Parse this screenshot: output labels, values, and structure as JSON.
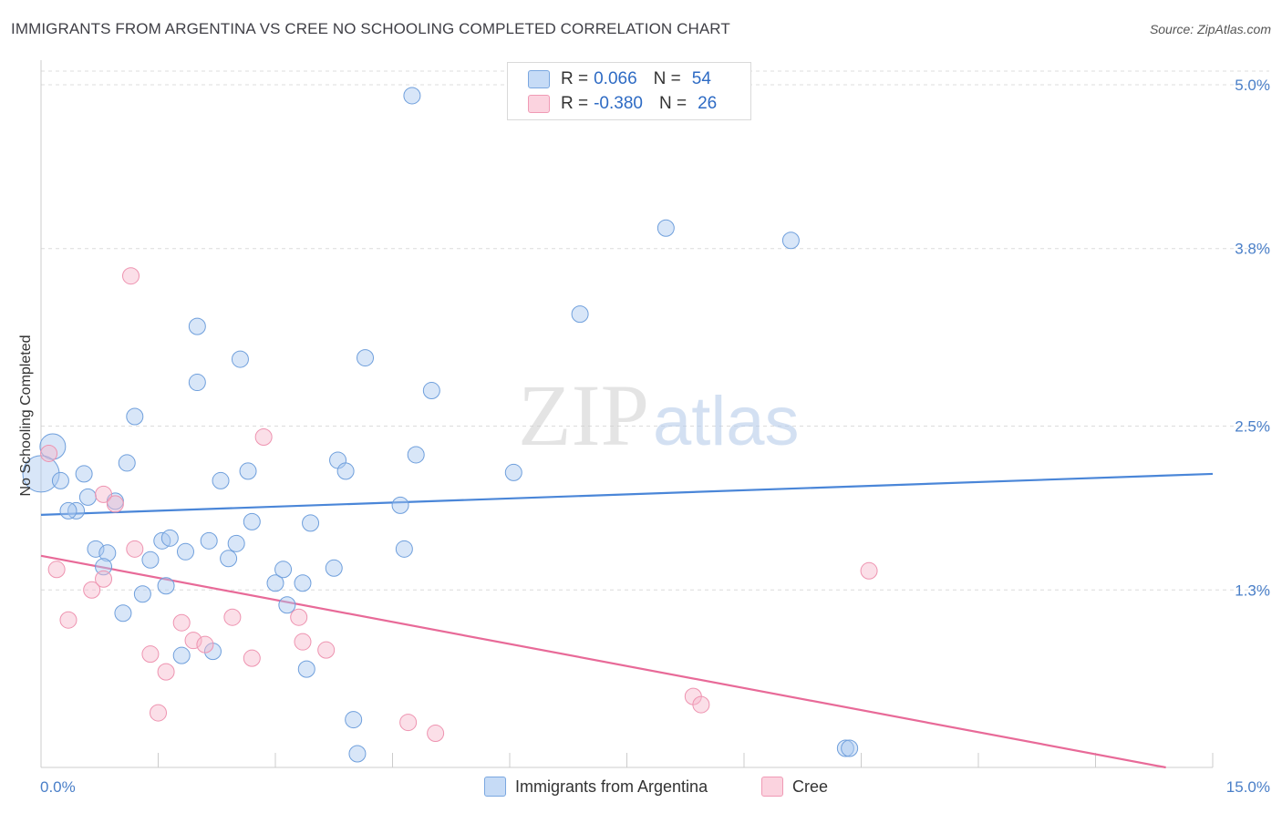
{
  "header": {
    "title": "IMMIGRANTS FROM ARGENTINA VS CREE NO SCHOOLING COMPLETED CORRELATION CHART",
    "source": "Source: ZipAtlas.com"
  },
  "watermark": {
    "zip": "ZIP",
    "atlas": "atlas"
  },
  "legend": {
    "rows": [
      {
        "r_label": "R =",
        "r_value": "0.066",
        "n_label": "N =",
        "n_value": "54",
        "color": "#a9c8f0"
      },
      {
        "r_label": "R =",
        "r_value": "-0.380",
        "n_label": "N =",
        "n_value": "26",
        "color": "#f6b9cb"
      }
    ]
  },
  "bottom_legend": {
    "items": [
      {
        "label": "Immigrants from Argentina",
        "color": "#a9c8f0"
      },
      {
        "label": "Cree",
        "color": "#f6b9cb"
      }
    ]
  },
  "chart_data": {
    "type": "scatter",
    "title": "IMMIGRANTS FROM ARGENTINA VS CREE NO SCHOOLING COMPLETED CORRELATION CHART",
    "xlabel": "",
    "ylabel": "No Schooling Completed",
    "xlim": [
      0,
      15
    ],
    "ylim": [
      0,
      5.1
    ],
    "x_ticks": [
      "0.0%",
      "15.0%"
    ],
    "y_ticks": [
      {
        "value": 5.0,
        "label": "5.0%"
      },
      {
        "value": 3.8,
        "label": "3.8%"
      },
      {
        "value": 2.5,
        "label": "2.5%"
      },
      {
        "value": 1.3,
        "label": "1.3%"
      }
    ],
    "grid": true,
    "colors": {
      "argentina": "#4a86d8",
      "cree": "#e86a98"
    },
    "series": [
      {
        "name": "Immigrants from Argentina",
        "trend": [
          [
            0,
            1.85
          ],
          [
            15,
            2.15
          ]
        ],
        "points": [
          [
            0.15,
            2.35,
            14
          ],
          [
            0.0,
            2.15,
            20
          ],
          [
            0.25,
            2.1,
            9
          ],
          [
            0.55,
            2.15,
            9
          ],
          [
            0.6,
            1.98,
            9
          ],
          [
            0.45,
            1.88,
            9
          ],
          [
            0.35,
            1.88,
            9
          ],
          [
            0.95,
            1.95,
            9
          ],
          [
            1.1,
            2.23,
            9
          ],
          [
            1.2,
            2.57,
            9
          ],
          [
            0.7,
            1.6,
            9
          ],
          [
            0.85,
            1.57,
            9
          ],
          [
            0.8,
            1.47,
            9
          ],
          [
            1.4,
            1.52,
            9
          ],
          [
            1.55,
            1.66,
            9
          ],
          [
            1.65,
            1.68,
            9
          ],
          [
            1.85,
            1.58,
            9
          ],
          [
            2.15,
            1.66,
            9
          ],
          [
            2.4,
            1.53,
            9
          ],
          [
            2.5,
            1.64,
            9
          ],
          [
            2.7,
            1.8,
            9
          ],
          [
            2.65,
            2.17,
            9
          ],
          [
            2.0,
            2.82,
            9
          ],
          [
            2.0,
            3.23,
            9
          ],
          [
            2.55,
            2.99,
            9
          ],
          [
            2.3,
            2.1,
            9
          ],
          [
            1.05,
            1.13,
            9
          ],
          [
            1.3,
            1.27,
            9
          ],
          [
            1.6,
            1.33,
            9
          ],
          [
            1.8,
            0.82,
            9
          ],
          [
            2.2,
            0.85,
            9
          ],
          [
            3.0,
            1.35,
            9
          ],
          [
            3.1,
            1.45,
            9
          ],
          [
            3.15,
            1.19,
            9
          ],
          [
            3.35,
            1.35,
            9
          ],
          [
            3.4,
            0.72,
            9
          ],
          [
            3.45,
            1.79,
            9
          ],
          [
            3.8,
            2.25,
            9
          ],
          [
            3.9,
            2.17,
            9
          ],
          [
            3.75,
            1.46,
            9
          ],
          [
            4.0,
            0.35,
            9
          ],
          [
            4.05,
            0.1,
            9
          ],
          [
            4.15,
            3.0,
            9
          ],
          [
            4.6,
            1.92,
            9
          ],
          [
            4.65,
            1.6,
            9
          ],
          [
            4.8,
            2.29,
            9
          ],
          [
            5.0,
            2.76,
            9
          ],
          [
            4.75,
            4.92,
            9
          ],
          [
            6.05,
            2.16,
            9
          ],
          [
            6.9,
            3.32,
            9
          ],
          [
            8.0,
            3.95,
            9
          ],
          [
            9.6,
            3.86,
            9
          ],
          [
            10.3,
            0.14,
            9
          ],
          [
            10.35,
            0.14,
            9
          ]
        ]
      },
      {
        "name": "Cree",
        "trend": [
          [
            0,
            1.55
          ],
          [
            14.4,
            0.0
          ]
        ],
        "points": [
          [
            0.1,
            2.3,
            9
          ],
          [
            0.2,
            1.45,
            9
          ],
          [
            0.35,
            1.08,
            9
          ],
          [
            0.65,
            1.3,
            9
          ],
          [
            0.8,
            2.0,
            9
          ],
          [
            0.8,
            1.38,
            9
          ],
          [
            0.95,
            1.93,
            9
          ],
          [
            1.15,
            3.6,
            9
          ],
          [
            1.2,
            1.6,
            9
          ],
          [
            1.4,
            0.83,
            9
          ],
          [
            1.5,
            0.4,
            9
          ],
          [
            1.6,
            0.7,
            9
          ],
          [
            1.8,
            1.06,
            9
          ],
          [
            1.95,
            0.93,
            9
          ],
          [
            2.1,
            0.9,
            9
          ],
          [
            2.45,
            1.1,
            9
          ],
          [
            2.7,
            0.8,
            9
          ],
          [
            2.85,
            2.42,
            9
          ],
          [
            3.3,
            1.1,
            9
          ],
          [
            3.35,
            0.92,
            9
          ],
          [
            3.65,
            0.86,
            9
          ],
          [
            4.7,
            0.33,
            9
          ],
          [
            5.05,
            0.25,
            9
          ],
          [
            8.35,
            0.52,
            9
          ],
          [
            8.45,
            0.46,
            9
          ],
          [
            10.6,
            1.44,
            9
          ]
        ]
      }
    ]
  }
}
